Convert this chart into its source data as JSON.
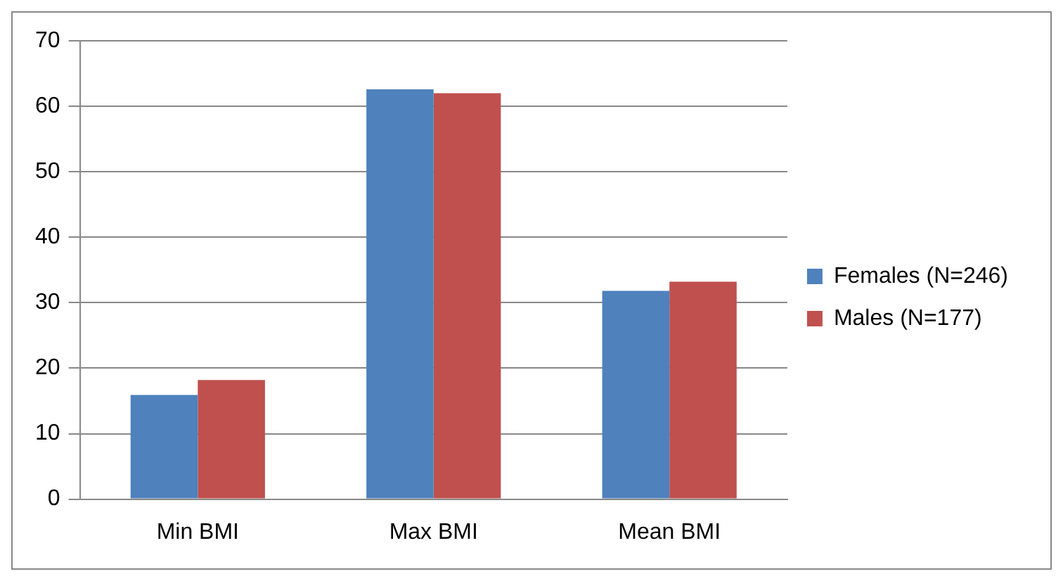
{
  "chart_data": {
    "type": "bar",
    "categories": [
      "Min BMI",
      "Max BMI",
      "Mean BMI"
    ],
    "series": [
      {
        "name": "Females (N=246)",
        "color": "#4f81bd",
        "values": [
          15.9,
          62.6,
          31.8
        ]
      },
      {
        "name": "Males (N=177)",
        "color": "#c0504d",
        "values": [
          18.2,
          62.0,
          33.2
        ]
      }
    ],
    "ylim": [
      0,
      70
    ],
    "yticks": [
      0,
      10,
      20,
      30,
      40,
      50,
      60,
      70
    ],
    "grid": "y",
    "legend": "right"
  }
}
